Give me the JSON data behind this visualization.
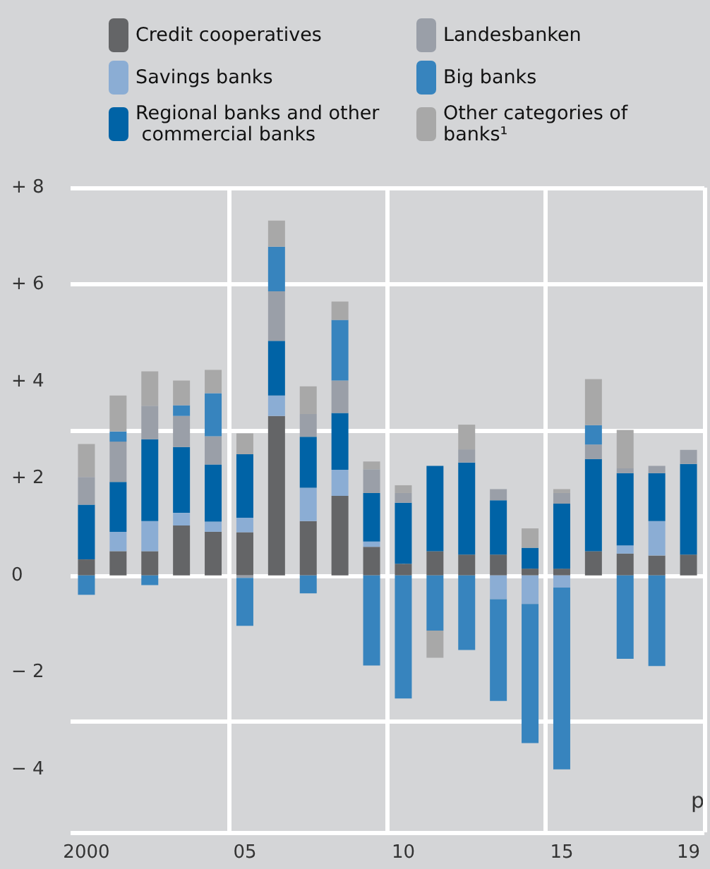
{
  "chart_data": {
    "type": "bar",
    "stacked": true,
    "categories": [
      "2000",
      null,
      null,
      null,
      null,
      "05",
      null,
      null,
      null,
      null,
      "10",
      null,
      null,
      null,
      null,
      "15",
      null,
      null,
      null,
      "19"
    ],
    "series": [
      {
        "name": "Credit cooperatives",
        "color": "#646567",
        "values": [
          0.33,
          0.5,
          0.5,
          1.03,
          0.9,
          0.89,
          3.29,
          1.12,
          1.64,
          0.59,
          0.24,
          0.5,
          0.43,
          0.43,
          0.14,
          0.14,
          0.5,
          0.45,
          0.41,
          0.43
        ]
      },
      {
        "name": "Savings banks",
        "color": "#8badd4",
        "values": [
          null,
          0.4,
          0.62,
          0.26,
          0.21,
          0.3,
          0.42,
          0.69,
          0.54,
          0.11,
          null,
          null,
          null,
          -0.49,
          -0.59,
          -0.25,
          null,
          0.17,
          0.71,
          null
        ]
      },
      {
        "name": "Regional banks and other commercial banks",
        "color": "#0063a6",
        "values": [
          1.13,
          1.03,
          1.69,
          1.36,
          1.18,
          1.31,
          1.13,
          1.05,
          1.17,
          1.0,
          1.26,
          1.76,
          1.9,
          1.12,
          0.43,
          1.34,
          1.9,
          1.49,
          0.99,
          1.87
        ]
      },
      {
        "name": "Landesbanken",
        "color": "#9a9fa8",
        "values": [
          0.57,
          0.83,
          0.69,
          0.64,
          0.58,
          -0.05,
          1.02,
          0.47,
          0.67,
          0.49,
          0.2,
          null,
          0.27,
          0.23,
          null,
          0.22,
          0.3,
          0.1,
          0.15,
          0.29
        ]
      },
      {
        "name": "Big banks",
        "color": "#3784be",
        "values": [
          -0.4,
          0.21,
          -0.2,
          0.22,
          0.89,
          -0.99,
          0.92,
          -0.37,
          1.25,
          -1.86,
          -2.54,
          -1.14,
          -1.54,
          -2.1,
          -2.87,
          -3.75,
          0.4,
          -1.72,
          -1.87,
          null
        ]
      },
      {
        "name": "Other categories of banks¹",
        "color": "#a8a8a8",
        "values": [
          0.68,
          0.74,
          0.71,
          0.51,
          0.48,
          0.43,
          0.54,
          0.57,
          0.38,
          0.16,
          0.16,
          -0.56,
          0.51,
          null,
          0.4,
          0.08,
          0.95,
          0.79,
          null,
          null
        ]
      }
    ],
    "ylim": [
      -5.3,
      8
    ],
    "yticks": [
      {
        "value": -4,
        "label": "− 4"
      },
      {
        "value": -2,
        "label": "− 2"
      },
      {
        "value": 0,
        "label": "0"
      },
      {
        "value": 2,
        "label": "+ 2"
      },
      {
        "value": 4,
        "label": "+ 4"
      },
      {
        "value": 6,
        "label": "+ 6"
      },
      {
        "value": 8,
        "label": "+ 8"
      }
    ],
    "grid": true,
    "legend": "top",
    "annotations": [
      "p"
    ]
  }
}
